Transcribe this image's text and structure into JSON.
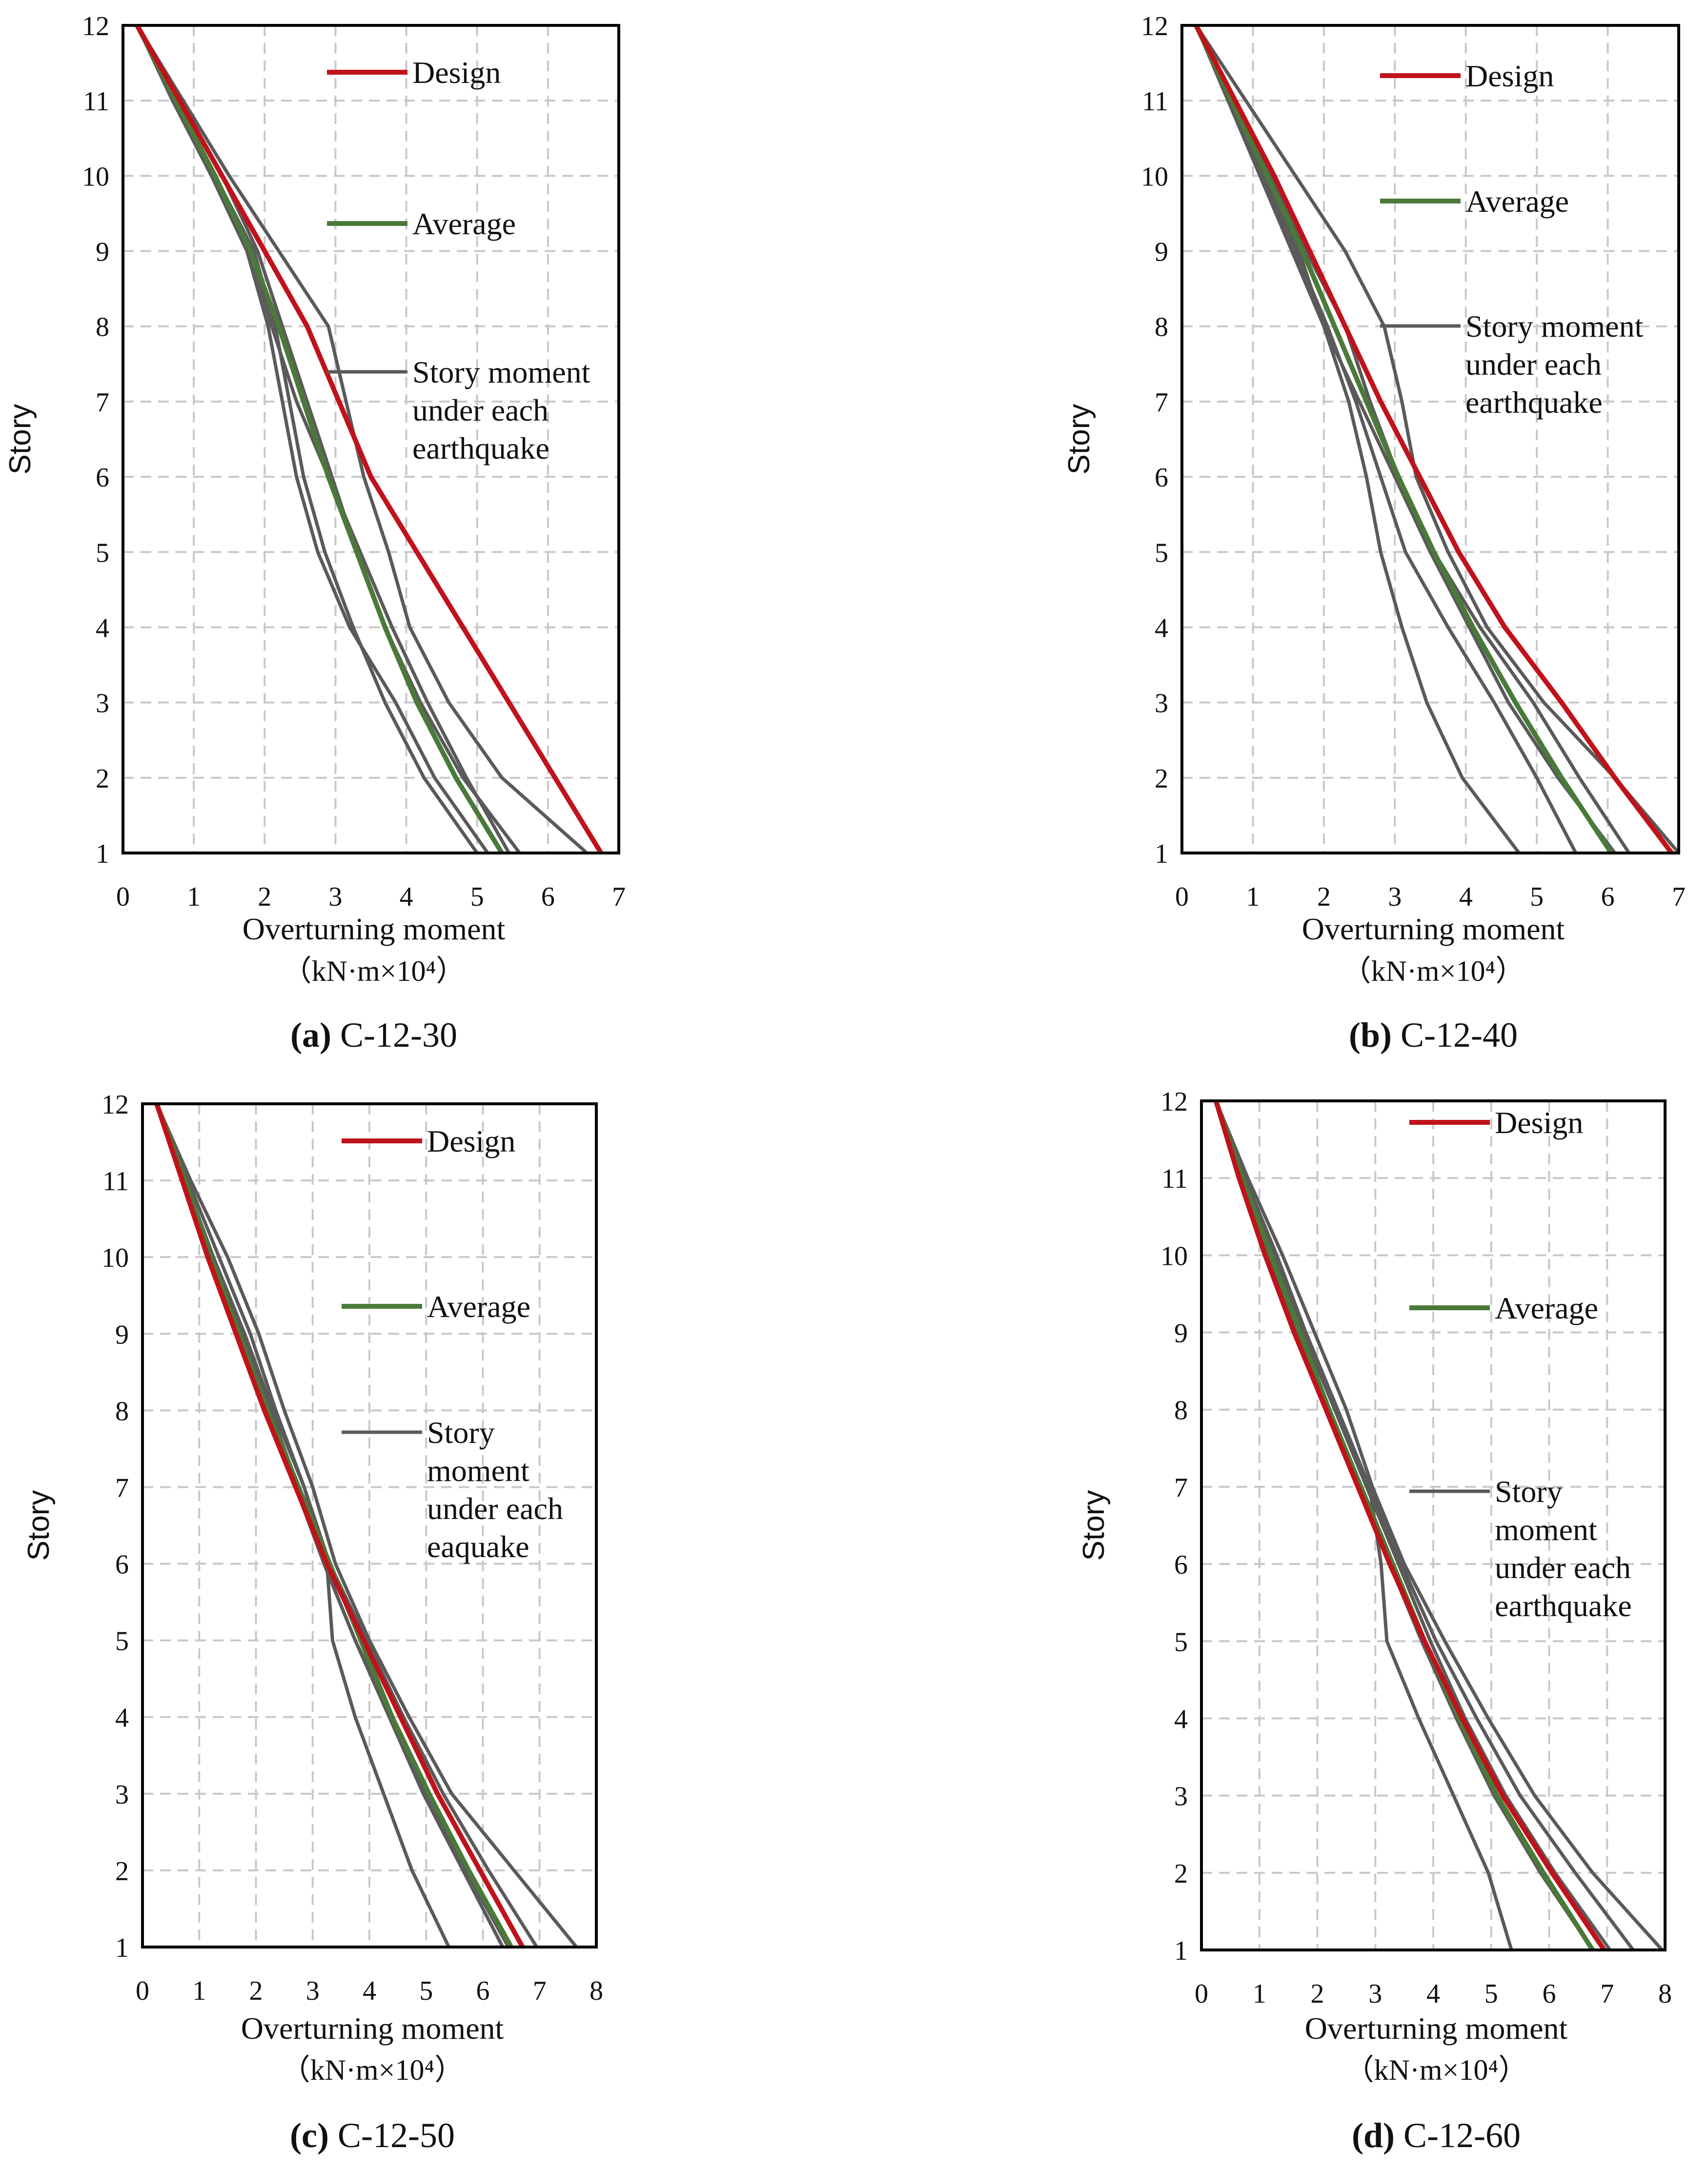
{
  "colors": {
    "design": "#c0121b",
    "average": "#4a7a39",
    "quake": "#5a5a5a"
  },
  "legend": {
    "design": "Design",
    "average": "Average",
    "quake_lines_ab": [
      "Story moment",
      "under each",
      "earthquake"
    ],
    "quake_lines_ab_b": [
      "Story moment",
      "under each",
      "earthquake"
    ],
    "quake_lines_c": [
      "Story",
      "moment",
      "under each",
      "eaquake"
    ],
    "quake_lines_d": [
      "Story",
      "moment",
      "under each",
      "earthquake"
    ]
  },
  "chart_data": [
    {
      "id": "a",
      "type": "line",
      "letter": "(a)",
      "caption": "C-12-30",
      "title": "",
      "xlabel": "Overturning moment",
      "xunit": "（kN·m×10⁴）",
      "ylabel": "Story",
      "xlim": [
        0,
        7
      ],
      "ylim": [
        1,
        12
      ],
      "xticks": [
        "0",
        "1",
        "2",
        "3",
        "4",
        "5",
        "6",
        "7"
      ],
      "yticks": [
        "1",
        "2",
        "3",
        "4",
        "5",
        "6",
        "7",
        "8",
        "9",
        "10",
        "11",
        "12"
      ],
      "stories": [
        12,
        11,
        10,
        9,
        8,
        7,
        6,
        5,
        4,
        3,
        2,
        1
      ],
      "design": [
        0.2,
        0.8,
        1.4,
        2.0,
        2.6,
        3.05,
        3.5,
        4.15,
        4.8,
        5.45,
        6.1,
        6.75
      ],
      "average": [
        0.2,
        0.75,
        1.3,
        1.8,
        2.2,
        2.55,
        2.9,
        3.3,
        3.7,
        4.15,
        4.7,
        5.35
      ],
      "quakes": [
        [
          0.2,
          0.85,
          1.5,
          2.2,
          2.9,
          3.15,
          3.4,
          3.75,
          4.05,
          4.6,
          5.35,
          6.55
        ],
        [
          0.2,
          0.8,
          1.4,
          1.9,
          2.25,
          2.6,
          2.95,
          3.3,
          3.7,
          4.2,
          4.8,
          5.6
        ],
        [
          0.2,
          0.75,
          1.3,
          1.8,
          2.1,
          2.45,
          2.9,
          3.35,
          3.8,
          4.3,
          4.85,
          5.45
        ],
        [
          0.2,
          0.7,
          1.3,
          1.85,
          2.15,
          2.35,
          2.55,
          2.85,
          3.25,
          3.7,
          4.25,
          5.0
        ],
        [
          0.2,
          0.7,
          1.25,
          1.75,
          2.05,
          2.25,
          2.45,
          2.75,
          3.2,
          3.85,
          4.4,
          5.15
        ]
      ]
    },
    {
      "id": "b",
      "type": "line",
      "letter": "(b)",
      "caption": "C-12-40",
      "title": "",
      "xlabel": "Overturning moment",
      "xunit": "（kN·m×10⁴）",
      "ylabel": "Story",
      "xlim": [
        0,
        7
      ],
      "ylim": [
        1,
        12
      ],
      "xticks": [
        "0",
        "1",
        "2",
        "3",
        "4",
        "5",
        "6",
        "7"
      ],
      "yticks": [
        "1",
        "2",
        "3",
        "4",
        "5",
        "6",
        "7",
        "8",
        "9",
        "10",
        "11",
        "12"
      ],
      "stories": [
        12,
        11,
        10,
        9,
        8,
        7,
        6,
        5,
        4,
        3,
        2,
        1
      ],
      "design": [
        0.2,
        0.75,
        1.3,
        1.8,
        2.3,
        2.8,
        3.35,
        3.9,
        4.55,
        5.35,
        6.1,
        6.9
      ],
      "average": [
        0.2,
        0.7,
        1.2,
        1.7,
        2.15,
        2.6,
        3.05,
        3.55,
        4.1,
        4.7,
        5.35,
        6.05
      ],
      "quakes": [
        [
          0.2,
          0.9,
          1.6,
          2.3,
          2.85,
          3.1,
          3.3,
          3.75,
          4.3,
          5.1,
          6.1,
          7.0
        ],
        [
          0.2,
          0.7,
          1.25,
          1.75,
          2.3,
          2.65,
          3.05,
          3.55,
          4.2,
          4.95,
          5.6,
          6.3
        ],
        [
          0.2,
          0.7,
          1.2,
          1.65,
          2.0,
          2.5,
          3.0,
          3.5,
          4.05,
          4.6,
          5.3,
          6.1
        ],
        [
          0.2,
          0.65,
          1.15,
          1.6,
          2.05,
          2.45,
          2.8,
          3.15,
          3.75,
          4.4,
          5.0,
          5.55
        ],
        [
          0.2,
          0.65,
          1.1,
          1.55,
          2.0,
          2.35,
          2.6,
          2.8,
          3.1,
          3.45,
          3.95,
          4.75
        ]
      ]
    },
    {
      "id": "c",
      "type": "line",
      "letter": "(c)",
      "caption": "C-12-50",
      "title": "",
      "xlabel": "Overturning moment",
      "xunit": "（kN·m×10⁴）",
      "ylabel": "Story",
      "xlim": [
        0,
        8
      ],
      "ylim": [
        1,
        12
      ],
      "xticks": [
        "0",
        "1",
        "2",
        "3",
        "4",
        "5",
        "6",
        "7",
        "8"
      ],
      "yticks": [
        "1",
        "2",
        "3",
        "4",
        "5",
        "6",
        "7",
        "8",
        "9",
        "10",
        "11",
        "12"
      ],
      "stories": [
        12,
        11,
        10,
        9,
        8,
        7,
        6,
        5,
        4,
        3,
        2,
        1
      ],
      "design": [
        0.25,
        0.7,
        1.15,
        1.65,
        2.15,
        2.7,
        3.25,
        3.9,
        4.55,
        5.2,
        5.95,
        6.7
      ],
      "average": [
        0.25,
        0.75,
        1.2,
        1.7,
        2.2,
        2.75,
        3.3,
        3.85,
        4.4,
        5.05,
        5.75,
        6.5
      ],
      "quakes": [
        [
          0.25,
          0.85,
          1.5,
          2.05,
          2.5,
          3.0,
          3.4,
          4.0,
          4.7,
          5.45,
          6.55,
          7.65
        ],
        [
          0.25,
          0.8,
          1.35,
          1.9,
          2.35,
          2.85,
          3.3,
          3.95,
          4.6,
          5.3,
          6.1,
          6.95
        ],
        [
          0.25,
          0.75,
          1.25,
          1.75,
          2.25,
          2.75,
          3.2,
          3.75,
          4.35,
          4.95,
          5.65,
          6.35
        ],
        [
          0.25,
          0.7,
          1.15,
          1.65,
          2.15,
          2.7,
          3.2,
          3.75,
          4.4,
          5.0,
          5.7,
          6.45
        ],
        [
          0.25,
          0.75,
          1.25,
          1.8,
          2.3,
          2.85,
          3.25,
          3.35,
          3.75,
          4.25,
          4.75,
          5.4
        ]
      ]
    },
    {
      "id": "d",
      "type": "line",
      "letter": "(d)",
      "caption": "C-12-60",
      "title": "",
      "xlabel": "Overturning moment",
      "xunit": "（kN·m×10⁴）",
      "ylabel": "Story",
      "xlim": [
        0,
        8
      ],
      "ylim": [
        1,
        12
      ],
      "xticks": [
        "0",
        "1",
        "2",
        "3",
        "4",
        "5",
        "6",
        "7",
        "8"
      ],
      "yticks": [
        "1",
        "2",
        "3",
        "4",
        "5",
        "6",
        "7",
        "8",
        "9",
        "10",
        "11",
        "12"
      ],
      "stories": [
        12,
        11,
        10,
        9,
        8,
        7,
        6,
        5,
        4,
        3,
        2,
        1
      ],
      "design": [
        0.25,
        0.65,
        1.1,
        1.6,
        2.15,
        2.7,
        3.25,
        3.85,
        4.5,
        5.2,
        6.05,
        6.95
      ],
      "average": [
        0.25,
        0.7,
        1.2,
        1.7,
        2.2,
        2.75,
        3.3,
        3.85,
        4.45,
        5.1,
        5.9,
        6.75
      ],
      "quakes": [
        [
          0.25,
          0.8,
          1.4,
          1.95,
          2.5,
          2.95,
          3.5,
          4.2,
          4.95,
          5.75,
          6.75,
          7.95
        ],
        [
          0.25,
          0.75,
          1.3,
          1.8,
          2.35,
          2.9,
          3.45,
          4.05,
          4.75,
          5.5,
          6.45,
          7.45
        ],
        [
          0.25,
          0.7,
          1.2,
          1.75,
          2.3,
          2.85,
          3.4,
          3.95,
          4.55,
          5.25,
          6.1,
          7.05
        ],
        [
          0.25,
          0.7,
          1.15,
          1.65,
          2.2,
          2.7,
          3.25,
          3.8,
          4.4,
          5.05,
          5.85,
          6.75
        ],
        [
          0.25,
          0.75,
          1.25,
          1.8,
          2.35,
          2.9,
          3.1,
          3.2,
          3.75,
          4.35,
          4.95,
          5.35
        ]
      ]
    }
  ]
}
